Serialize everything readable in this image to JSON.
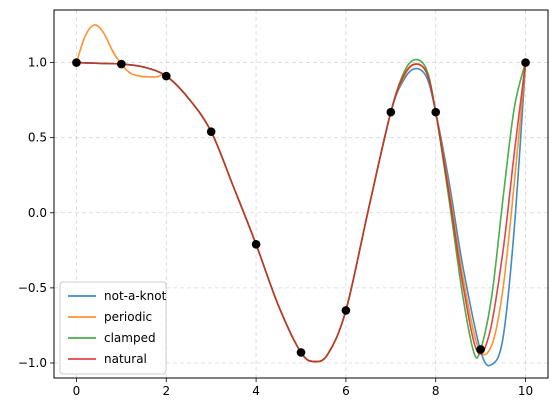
{
  "chart_data": {
    "type": "line",
    "title": "",
    "xlabel": "",
    "ylabel": "",
    "xlim": [
      -0.5,
      10.5
    ],
    "ylim": [
      -1.1,
      1.35
    ],
    "grid": true,
    "legend_position": "lower-left",
    "x_ticks": [
      0,
      2,
      4,
      6,
      8,
      10
    ],
    "x_tick_labels": [
      "0",
      "2",
      "4",
      "6",
      "8",
      "10"
    ],
    "y_ticks": [
      -1.0,
      -0.5,
      0.0,
      0.5,
      1.0
    ],
    "y_tick_labels": [
      "−1.0",
      "−0.5",
      "0.0",
      "0.5",
      "1.0"
    ],
    "series": [
      {
        "name": "not-a-knot",
        "color": "#1f77b4",
        "x": [
          0,
          0.5,
          1,
          1.5,
          2,
          2.5,
          3,
          3.5,
          4,
          4.5,
          5,
          5.3,
          5.6,
          6,
          6.5,
          7,
          7.3,
          7.55,
          7.8,
          8,
          8.3,
          8.6,
          9,
          9.25,
          9.5,
          9.75,
          10
        ],
        "y": [
          1.0,
          0.995,
          0.99,
          0.97,
          0.91,
          0.76,
          0.54,
          0.17,
          -0.21,
          -0.62,
          -0.93,
          -0.99,
          -0.94,
          -0.65,
          0.02,
          0.67,
          0.89,
          0.96,
          0.9,
          0.67,
          0.2,
          -0.35,
          -0.92,
          -1.01,
          -0.83,
          -0.1,
          1.0
        ]
      },
      {
        "name": "periodic",
        "color": "#ff7f0e",
        "x": [
          0,
          0.2,
          0.4,
          0.6,
          0.8,
          1,
          1.2,
          1.4,
          1.6,
          1.8,
          2,
          2.5,
          3,
          3.5,
          4,
          4.5,
          5,
          5.3,
          5.6,
          6,
          6.5,
          7,
          7.3,
          7.55,
          7.8,
          8,
          8.3,
          8.6,
          8.95,
          9.25,
          9.5,
          9.75,
          10
        ],
        "y": [
          1.0,
          1.18,
          1.25,
          1.2,
          1.08,
          0.99,
          0.93,
          0.91,
          0.905,
          0.905,
          0.91,
          0.76,
          0.54,
          0.17,
          -0.21,
          -0.62,
          -0.93,
          -0.99,
          -0.94,
          -0.65,
          0.02,
          0.67,
          0.91,
          0.99,
          0.93,
          0.67,
          0.15,
          -0.42,
          -0.9,
          -0.88,
          -0.5,
          0.2,
          1.0
        ]
      },
      {
        "name": "clamped",
        "color": "#2ca02c",
        "x": [
          0,
          0.5,
          1,
          1.5,
          2,
          2.5,
          3,
          3.5,
          4,
          4.5,
          5,
          5.3,
          5.6,
          6,
          6.5,
          7,
          7.3,
          7.55,
          7.8,
          8,
          8.3,
          8.6,
          8.85,
          9,
          9.25,
          9.5,
          9.75,
          10
        ],
        "y": [
          1.0,
          0.995,
          0.99,
          0.97,
          0.91,
          0.76,
          0.54,
          0.17,
          -0.21,
          -0.62,
          -0.93,
          -0.99,
          -0.94,
          -0.65,
          0.02,
          0.67,
          0.94,
          1.02,
          0.95,
          0.67,
          0.08,
          -0.55,
          -0.93,
          -0.91,
          -0.55,
          0.1,
          0.7,
          1.0
        ]
      },
      {
        "name": "natural",
        "color": "#d62728",
        "x": [
          0,
          0.5,
          1,
          1.5,
          2,
          2.5,
          3,
          3.5,
          4,
          4.5,
          5,
          5.3,
          5.6,
          6,
          6.5,
          7,
          7.3,
          7.55,
          7.8,
          8,
          8.3,
          8.6,
          8.92,
          9.2,
          9.5,
          9.75,
          10
        ],
        "y": [
          1.0,
          0.995,
          0.99,
          0.97,
          0.91,
          0.76,
          0.54,
          0.17,
          -0.21,
          -0.62,
          -0.93,
          -0.99,
          -0.94,
          -0.65,
          0.02,
          0.67,
          0.92,
          0.99,
          0.93,
          0.67,
          0.12,
          -0.47,
          -0.92,
          -0.8,
          -0.25,
          0.4,
          1.0
        ]
      }
    ],
    "points": {
      "color": "#000000",
      "x": [
        0,
        1,
        2,
        3,
        4,
        5,
        6,
        7,
        8,
        9,
        10
      ],
      "y": [
        1.0,
        0.99,
        0.91,
        0.54,
        -0.21,
        -0.93,
        -0.65,
        0.67,
        0.67,
        -0.91,
        1.0
      ]
    }
  }
}
